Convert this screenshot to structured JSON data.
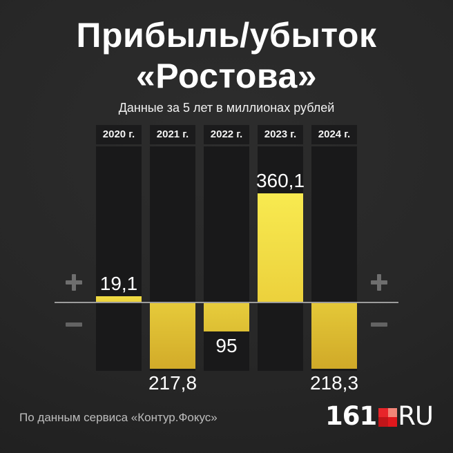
{
  "header": {
    "title_line1": "Прибыль/убыток",
    "title_line2": "«Ростова»",
    "subtitle": "Данные за 5 лет в миллионах рублей"
  },
  "chart_data": {
    "type": "bar",
    "title": "Прибыль/убыток «Ростова»",
    "subtitle": "Данные за 5 лет в миллионах рублей",
    "unit": "миллионы рублей",
    "categories": [
      "2020 г.",
      "2021 г.",
      "2022 г.",
      "2023 г.",
      "2024 г."
    ],
    "values": [
      19.1,
      -217.8,
      -95,
      360.1,
      -218.3
    ],
    "ylim": [
      -240,
      380
    ],
    "grid": false,
    "legend": "none",
    "columns": [
      {
        "year_label": "2020 г.",
        "value": 19.1,
        "label": "19,1"
      },
      {
        "year_label": "2021 г.",
        "value": -217.8,
        "label": "217,8"
      },
      {
        "year_label": "2022 г.",
        "value": -95,
        "label": "95"
      },
      {
        "year_label": "2023 г.",
        "value": 360.1,
        "label": "360,1"
      },
      {
        "year_label": "2024 г.",
        "value": -218.3,
        "label": "218,3"
      }
    ],
    "axis_symbols": {
      "plus": "+",
      "minus": "−"
    },
    "colors": {
      "bar_yellow_bright": "#f8ea50",
      "bar_yellow_dark": "#d0a928",
      "panel": "#19191a",
      "background": "#272727",
      "zero_line": "#9c9c9c",
      "sign_gray": "#6e6e6e",
      "text_white": "#ffffff"
    }
  },
  "footer": {
    "source": "По данным сервиса «Контур.Фокус»",
    "logo": {
      "number": "161",
      "suffix": "RU",
      "square_colors": {
        "tl": "#e8252a",
        "tr": "#f28578",
        "bl": "#c01519",
        "br": "#e0181d"
      }
    }
  }
}
